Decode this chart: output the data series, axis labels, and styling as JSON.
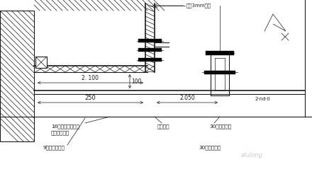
{
  "bg_color": "#ffffff",
  "line_color": "#1a1a1a",
  "label_top": "自攻3mm弹简",
  "dim1": "2. 100",
  "dim2": "100",
  "dim3": "250",
  "dim4": "2.050",
  "dim5": "2·nd·II",
  "label1": "16号层用入山标示",
  "label1b": "居大法处二道",
  "label2": "9号纸面下局板",
  "label3": "广吴法）",
  "label4": "30系列主龙丁",
  "label5": "30系列副龙板"
}
